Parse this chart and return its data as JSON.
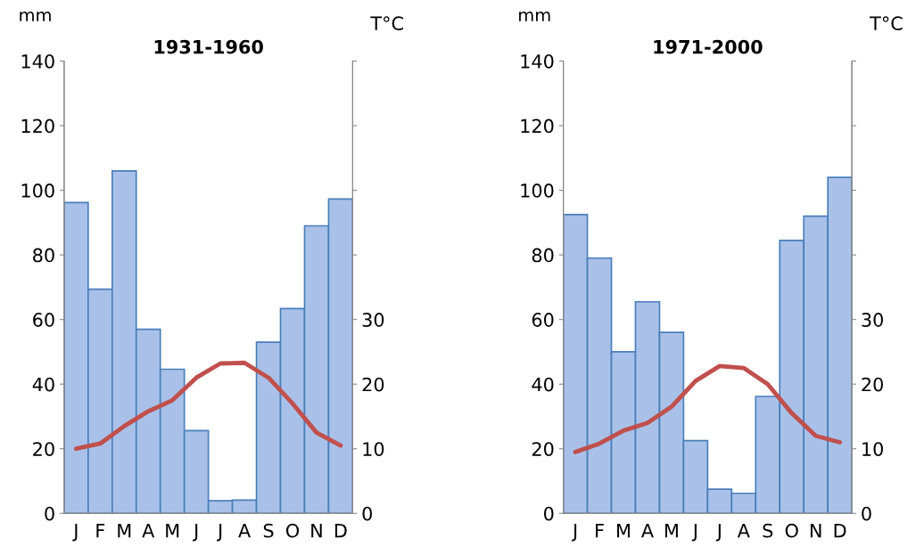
{
  "chart_data": [
    {
      "type": "bar",
      "title": "1931-1960",
      "ylabel": "mm",
      "y2label": "T°C",
      "categories": [
        "J",
        "F",
        "M",
        "A",
        "M",
        "J",
        "J",
        "A",
        "S",
        "O",
        "N",
        "D"
      ],
      "series": [
        {
          "color": "#a9c1e8",
          "values": [
            96.2,
            69.4,
            106,
            57,
            44.6,
            25.6,
            3.9,
            4.1,
            53,
            63.4,
            89,
            97.3
          ]
        },
        {
          "type": "line",
          "axis": "y2",
          "color": "#c0504d",
          "values": [
            10,
            10.8,
            13.5,
            15.8,
            17.5,
            21,
            23.2,
            23.3,
            21,
            17,
            12.5,
            10.5
          ]
        }
      ],
      "ylim": [
        0,
        140
      ],
      "yticks": [
        0,
        20,
        40,
        60,
        80,
        100,
        120,
        140
      ],
      "y2lim": [
        0,
        70
      ],
      "y2ticks": [
        0,
        10,
        20,
        30,
        {
          "value": 40,
          "label": null
        },
        {
          "value": 50,
          "label": null
        },
        {
          "value": 60,
          "label": null
        },
        {
          "value": 70,
          "label": null
        }
      ]
    },
    {
      "type": "bar",
      "title": "1971-2000",
      "ylabel": "mm",
      "y2label": "T°C",
      "categories": [
        "J",
        "F",
        "M",
        "A",
        "M",
        "J",
        "J",
        "A",
        "S",
        "O",
        "N",
        "D"
      ],
      "series": [
        {
          "color": "#a9c1e8",
          "values": [
            92.5,
            79,
            50,
            65.5,
            56,
            22.5,
            7.5,
            6.2,
            36.2,
            84.5,
            92,
            104
          ]
        },
        {
          "type": "line",
          "axis": "y2",
          "color": "#c0504d",
          "values": [
            9.5,
            10.8,
            12.8,
            14,
            16.5,
            20.5,
            22.8,
            22.5,
            20,
            15.5,
            12,
            11
          ]
        }
      ],
      "ylim": [
        0,
        140
      ],
      "yticks": [
        0,
        20,
        40,
        60,
        80,
        100,
        120,
        140
      ],
      "y2lim": [
        0,
        70
      ],
      "y2ticks": [
        0,
        10,
        20,
        30,
        {
          "value": 40,
          "label": null
        },
        {
          "value": 50,
          "label": null
        },
        {
          "value": 60,
          "label": null
        },
        {
          "value": 70,
          "label": null
        }
      ]
    }
  ]
}
